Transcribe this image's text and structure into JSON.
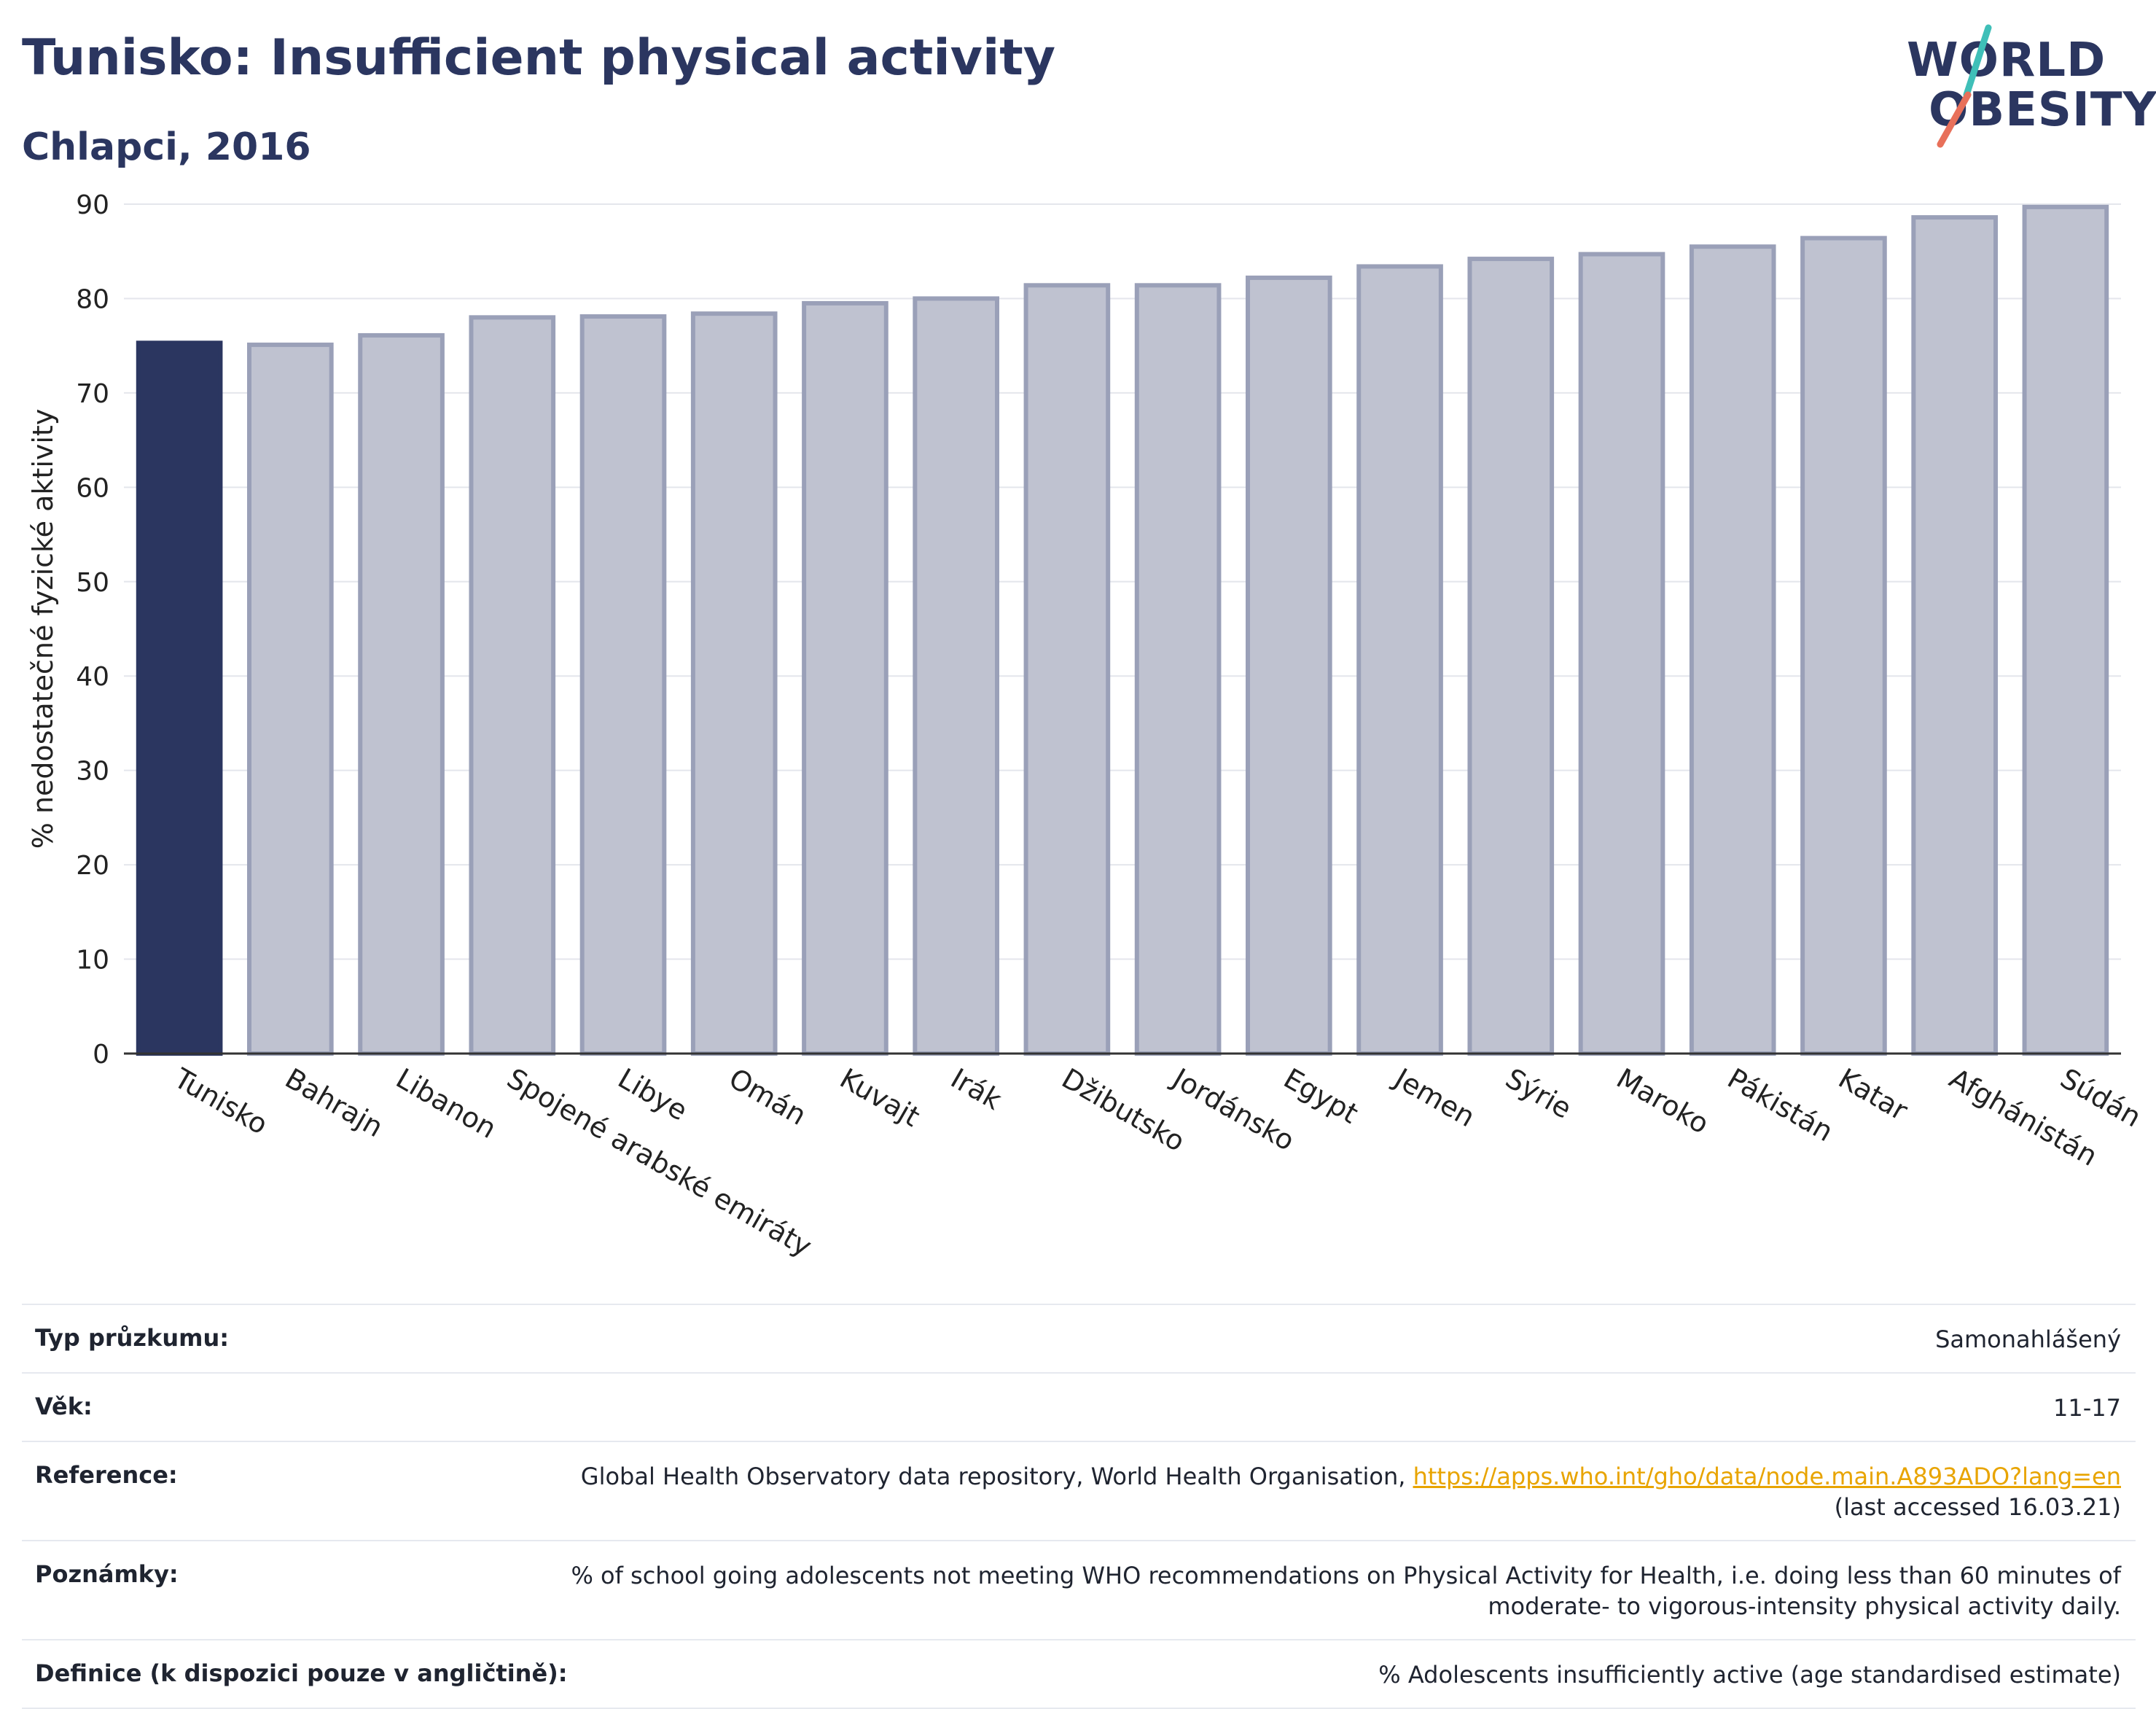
{
  "header": {
    "title": "Tunisko: Insufficient physical activity",
    "subtitle": "Chlapci, 2016"
  },
  "logo": {
    "line1": "WORLD",
    "line2": "OBESITY",
    "accent_colors": [
      "#3fbfb8",
      "#e8705a"
    ]
  },
  "chart_data": {
    "type": "bar",
    "ylabel": "% nedostatečné fyzické aktivity",
    "xlabel": "",
    "ylim": [
      0,
      90
    ],
    "yticks": [
      0,
      10,
      20,
      30,
      40,
      50,
      60,
      70,
      80,
      90
    ],
    "grid": true,
    "highlight_category": "Tunisko",
    "highlight_color": "#2b3660",
    "bar_color": "#bfc2d0",
    "bar_border_color": "#9aa0b8",
    "categories": [
      "Tunisko",
      "Bahrajn",
      "Libanon",
      "Spojené arabské emiráty",
      "Libye",
      "Omán",
      "Kuvajt",
      "Irák",
      "Džibutsko",
      "Jordánsko",
      "Egypt",
      "Jemen",
      "Sýrie",
      "Maroko",
      "Pákistán",
      "Katar",
      "Afghánistán",
      "Súdán"
    ],
    "values": [
      75.3,
      75.1,
      76.1,
      78.0,
      78.1,
      78.4,
      79.5,
      80.0,
      81.4,
      81.4,
      82.2,
      83.4,
      84.2,
      84.7,
      85.5,
      86.4,
      88.6,
      89.7
    ]
  },
  "meta": [
    {
      "label": "Typ průzkumu:",
      "value": "Samonahlášený"
    },
    {
      "label": "Věk:",
      "value": "11-17"
    },
    {
      "label": "Reference:",
      "value": "Global Health Observatory data repository, World Health Organisation, ",
      "link": "https://apps.who.int/gho/data/node.main.A893ADO?lang=en",
      "value_after": "(last accessed 16.03.21)"
    },
    {
      "label": "Poznámky:",
      "value": "% of school going adolescents not meeting WHO recommendations on Physical Activity for Health, i.e. doing less than 60 minutes of moderate- to vigorous-intensity physical activity daily."
    },
    {
      "label": "Definice (k dispozici pouze v angličtině):",
      "value": "% Adolescents insufficiently active (age standardised estimate)"
    }
  ]
}
